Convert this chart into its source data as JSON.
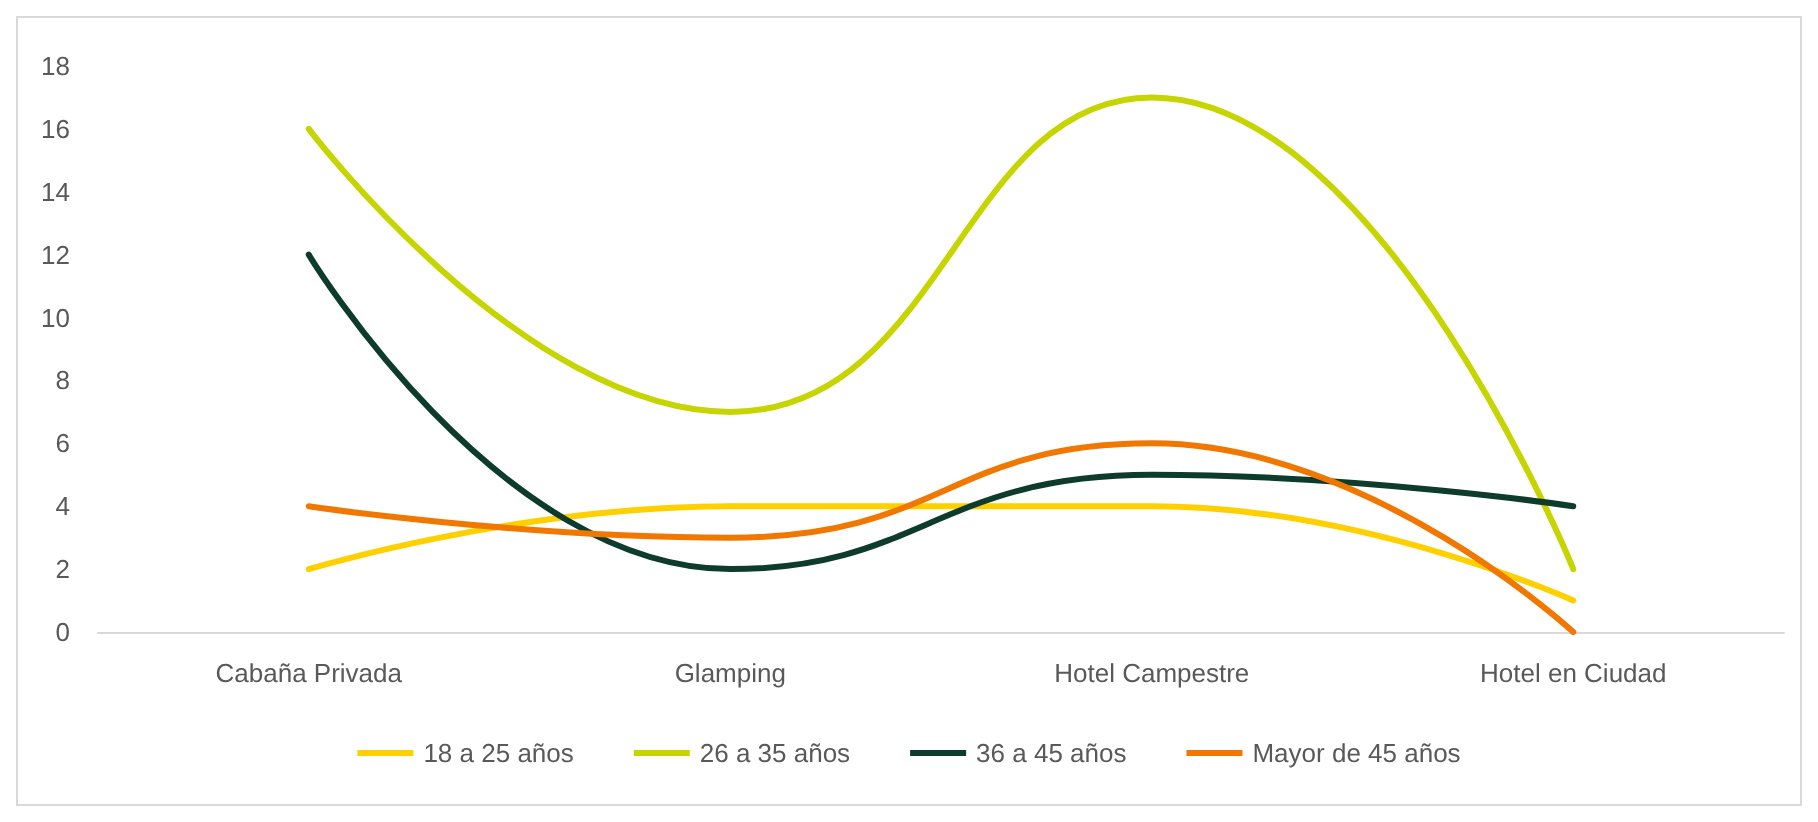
{
  "chart_data": {
    "type": "line",
    "categories": [
      "Cabaña Privada",
      "Glamping",
      "Hotel Campestre",
      "Hotel en Ciudad"
    ],
    "series": [
      {
        "name": "18 a 25 años",
        "color": "#ffd000",
        "values": [
          2,
          4,
          4,
          1
        ]
      },
      {
        "name": "26 a 35 años",
        "color": "#c6d400",
        "values": [
          16,
          7,
          17,
          2
        ]
      },
      {
        "name": "36 a 45 años",
        "color": "#0d3b2c",
        "values": [
          12,
          2,
          5,
          4
        ]
      },
      {
        "name": "Mayor de 45 años",
        "color": "#f07800",
        "values": [
          4,
          3,
          6,
          0
        ]
      }
    ],
    "ylim": [
      0,
      18
    ],
    "yticks": [
      0,
      2,
      4,
      6,
      8,
      10,
      12,
      14,
      16,
      18
    ],
    "grid": false,
    "legend": "bottom",
    "marker": "none",
    "line_style": "solid"
  }
}
